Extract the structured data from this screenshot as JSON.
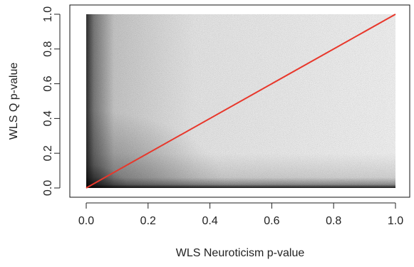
{
  "chart_data": {
    "type": "scatter",
    "title": "",
    "xlabel": "WLS Neuroticism p-value",
    "ylabel": "WLS Q p-value",
    "xlim": [
      0,
      1
    ],
    "ylim": [
      0,
      1
    ],
    "x_ticks": [
      0,
      0.2,
      0.4,
      0.6,
      0.8,
      1
    ],
    "x_tick_labels": [
      "0.0",
      "0.2",
      "0.4",
      "0.6",
      "0.8",
      "1.0"
    ],
    "y_ticks": [
      0,
      0.2,
      0.4,
      0.6,
      0.8,
      1
    ],
    "y_tick_labels": [
      "0.0",
      "0.2",
      "0.4",
      "0.6",
      "0.8",
      "1.0"
    ],
    "grid": false,
    "legend": "none",
    "point_color": "#000000",
    "point_distribution": "dense uniform cloud over the unit square, densest near x = 0 and y = 0",
    "reference_line": {
      "x": [
        0,
        1
      ],
      "y": [
        0,
        1
      ],
      "color": "#e8372b"
    }
  }
}
